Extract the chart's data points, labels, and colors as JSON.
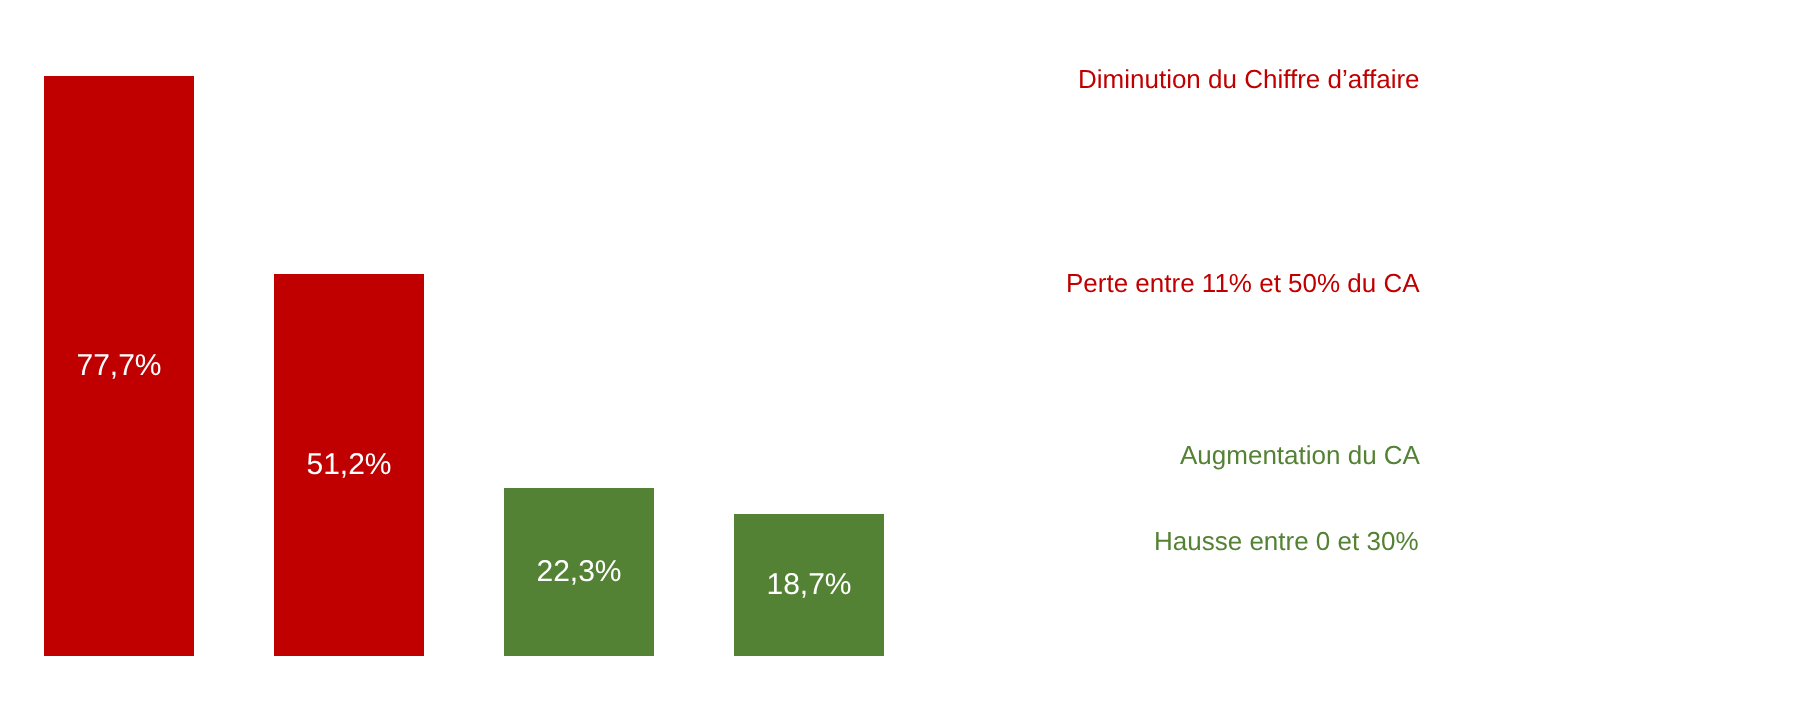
{
  "chart_data": {
    "type": "bar",
    "categories": [
      null,
      null,
      null,
      null
    ],
    "annotations": [
      "Diminution du Chiffre d’affaire",
      "Perte entre 11% et 50% du CA",
      "Augmentation du CA",
      "Hausse entre 0 et 30%"
    ],
    "values": [
      77.7,
      51.2,
      22.3,
      18.7
    ],
    "value_labels": [
      "77,7%",
      "51,2%",
      "22,3%",
      "18,7%"
    ],
    "colors": [
      "#c00000",
      "#c00000",
      "#548235",
      "#548235"
    ],
    "tick_labels": false
  }
}
